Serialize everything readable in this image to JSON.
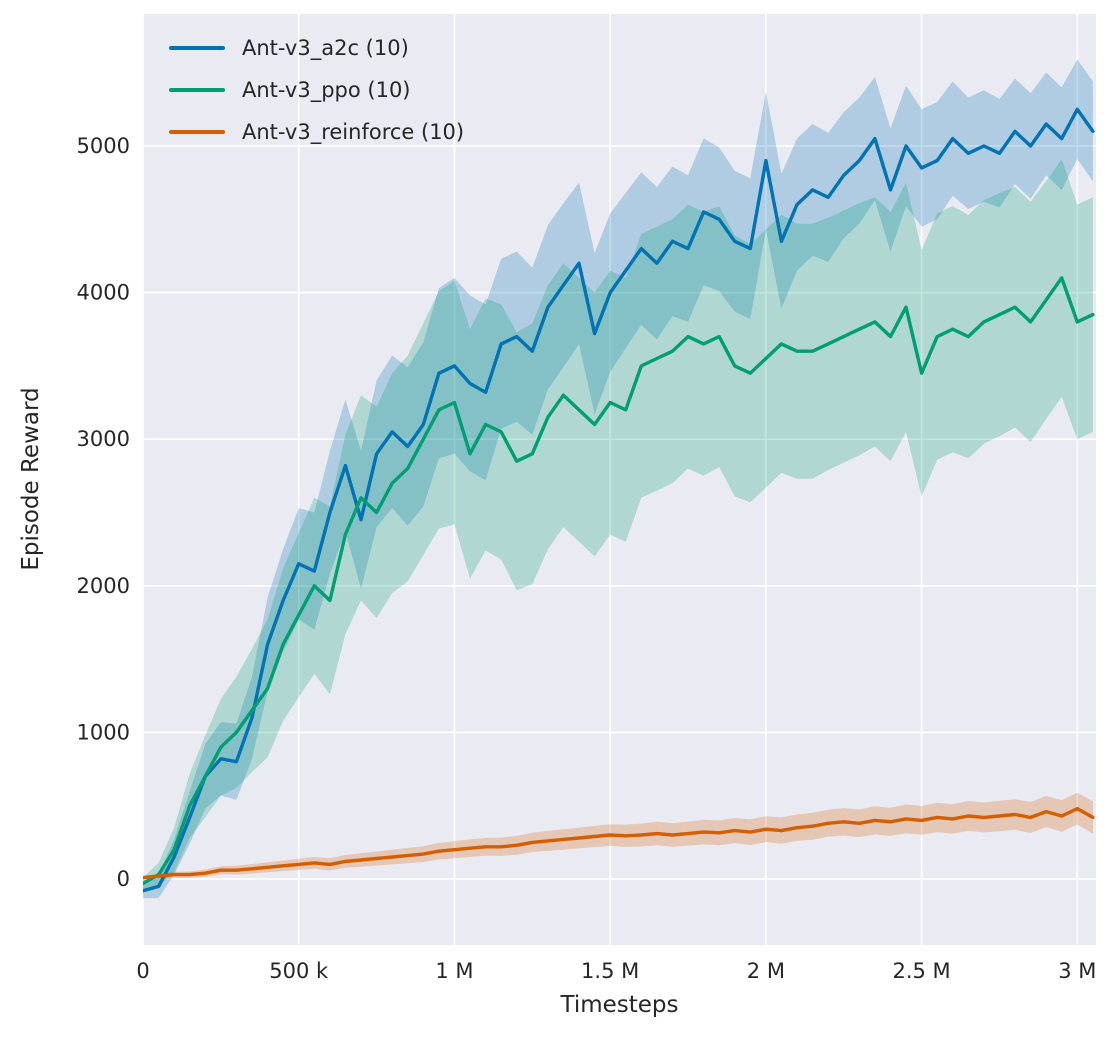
{
  "chart_data": {
    "type": "line",
    "title": "",
    "xlabel": "Timesteps",
    "ylabel": "Episode Reward",
    "grid": true,
    "legend_position": "upper-left",
    "xlim": [
      0,
      3060000
    ],
    "ylim": [
      -450,
      5900
    ],
    "x_start": 0,
    "x_step": 50000,
    "xtick_values": [
      0,
      500000,
      1000000,
      1500000,
      2000000,
      2500000,
      3000000
    ],
    "xtick_labels": [
      "0",
      "500 k",
      "1 M",
      "1.5 M",
      "2 M",
      "2.5 M",
      "3 M"
    ],
    "ytick_values": [
      0,
      1000,
      2000,
      3000,
      4000,
      5000
    ],
    "ytick_labels": [
      "0",
      "1000",
      "2000",
      "3000",
      "4000",
      "5000"
    ],
    "band_opacity": 0.25,
    "colors": {
      "plot_bg": "#eaeaf2",
      "grid": "#ffffff",
      "text": "#262626"
    },
    "series": [
      {
        "id": "a2c",
        "label": "Ant-v3_a2c (10)",
        "color": "#0173b2",
        "mean": [
          -80,
          -50,
          150,
          420,
          700,
          820,
          800,
          1100,
          1600,
          1900,
          2150,
          2100,
          2500,
          2820,
          2450,
          2900,
          3050,
          2950,
          3100,
          3450,
          3500,
          3380,
          3320,
          3650,
          3700,
          3600,
          3900,
          4050,
          4200,
          3720,
          4000,
          4150,
          4300,
          4200,
          4350,
          4300,
          4550,
          4500,
          4350,
          4300,
          4900,
          4350,
          4600,
          4700,
          4650,
          4800,
          4900,
          5050,
          4700,
          5000,
          4850,
          4900,
          5050,
          4950,
          5000,
          4950,
          5100,
          5000,
          5150,
          5050,
          5250,
          5100
        ],
        "spread": [
          50,
          80,
          120,
          180,
          220,
          250,
          260,
          280,
          320,
          350,
          380,
          400,
          420,
          450,
          470,
          500,
          520,
          540,
          560,
          580,
          600,
          600,
          600,
          580,
          580,
          570,
          560,
          560,
          550,
          550,
          540,
          530,
          520,
          520,
          510,
          500,
          500,
          490,
          480,
          480,
          470,
          460,
          450,
          450,
          440,
          430,
          430,
          420,
          420,
          410,
          400,
          400,
          390,
          380,
          380,
          370,
          360,
          360,
          350,
          350,
          340,
          340
        ]
      },
      {
        "id": "ppo",
        "label": "Ant-v3_ppo (10)",
        "color": "#029e73",
        "mean": [
          -30,
          30,
          200,
          500,
          700,
          900,
          1000,
          1150,
          1300,
          1600,
          1800,
          2000,
          1900,
          2350,
          2600,
          2500,
          2700,
          2800,
          3000,
          3200,
          3250,
          2900,
          3100,
          3050,
          2850,
          2900,
          3150,
          3300,
          3200,
          3100,
          3250,
          3200,
          3500,
          3550,
          3600,
          3700,
          3650,
          3700,
          3500,
          3450,
          3550,
          3650,
          3600,
          3600,
          3650,
          3700,
          3750,
          3800,
          3700,
          3900,
          3450,
          3700,
          3750,
          3700,
          3800,
          3850,
          3900,
          3800,
          3950,
          4100,
          3800,
          3850
        ],
        "spread": [
          40,
          80,
          150,
          220,
          280,
          330,
          380,
          420,
          470,
          520,
          560,
          600,
          640,
          680,
          700,
          720,
          750,
          770,
          790,
          810,
          830,
          850,
          860,
          870,
          880,
          890,
          900,
          900,
          900,
          900,
          900,
          900,
          900,
          900,
          900,
          900,
          900,
          890,
          890,
          880,
          880,
          880,
          870,
          870,
          860,
          860,
          860,
          850,
          850,
          850,
          840,
          840,
          840,
          830,
          830,
          830,
          820,
          820,
          810,
          810,
          800,
          800
        ]
      },
      {
        "id": "reinforce",
        "label": "Ant-v3_reinforce (10)",
        "color": "#d55e00",
        "mean": [
          10,
          20,
          30,
          30,
          40,
          60,
          60,
          70,
          80,
          90,
          100,
          110,
          100,
          120,
          130,
          140,
          150,
          160,
          170,
          190,
          200,
          210,
          220,
          220,
          230,
          250,
          260,
          270,
          280,
          290,
          300,
          295,
          300,
          310,
          300,
          310,
          320,
          315,
          330,
          320,
          340,
          330,
          350,
          360,
          380,
          390,
          380,
          400,
          390,
          410,
          400,
          420,
          410,
          430,
          420,
          430,
          440,
          420,
          460,
          430,
          480,
          420
        ],
        "spread": [
          10,
          15,
          20,
          22,
          25,
          28,
          30,
          32,
          34,
          36,
          38,
          40,
          42,
          44,
          46,
          48,
          50,
          52,
          54,
          56,
          58,
          60,
          60,
          62,
          64,
          66,
          68,
          70,
          70,
          72,
          74,
          76,
          78,
          80,
          80,
          82,
          84,
          84,
          86,
          88,
          88,
          90,
          90,
          92,
          92,
          94,
          94,
          96,
          96,
          98,
          98,
          100,
          100,
          102,
          102,
          104,
          104,
          106,
          106,
          108,
          108,
          110
        ]
      }
    ]
  }
}
